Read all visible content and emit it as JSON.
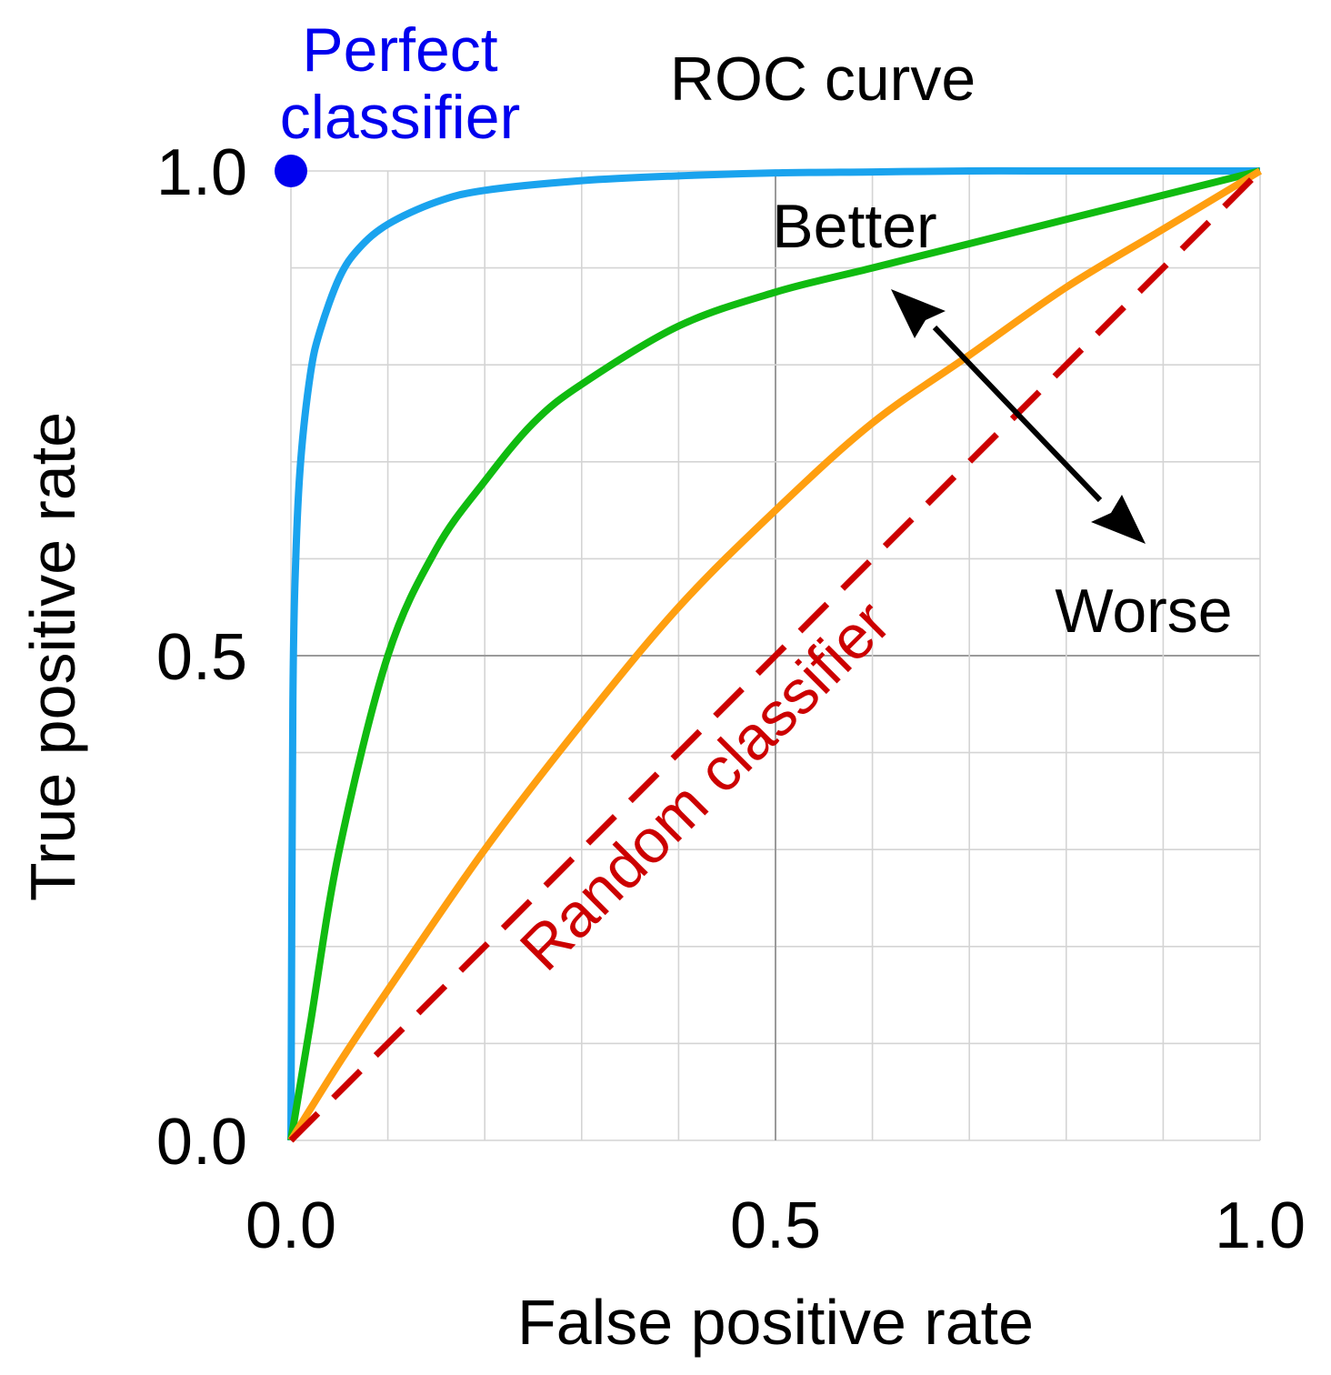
{
  "chart_data": {
    "type": "line",
    "title": "ROC curve",
    "xlabel": "False positive rate",
    "ylabel": "True positive rate",
    "xlim": [
      0,
      1
    ],
    "ylim": [
      0,
      1
    ],
    "grid": true,
    "x_ticks": [
      "0.0",
      "0.5",
      "1.0"
    ],
    "y_ticks": [
      "0.0",
      "0.5",
      "1.0"
    ],
    "perfect_point": {
      "x": 0,
      "y": 1,
      "label_line1": "Perfect",
      "label_line2": "classifier",
      "color": "#0000ee"
    },
    "series": [
      {
        "color": "#1aa3ee",
        "x": [
          0,
          0.002,
          0.005,
          0.01,
          0.02,
          0.03,
          0.05,
          0.07,
          0.1,
          0.15,
          0.2,
          0.3,
          0.4,
          0.5,
          0.6,
          0.7,
          0.8,
          0.9,
          1.0
        ],
        "y": [
          0,
          0.45,
          0.6,
          0.7,
          0.79,
          0.835,
          0.89,
          0.92,
          0.945,
          0.968,
          0.98,
          0.99,
          0.995,
          0.998,
          0.999,
          1.0,
          1.0,
          1.0,
          1.0
        ]
      },
      {
        "color": "#10bb10",
        "x": [
          0,
          0.02,
          0.05,
          0.1,
          0.15,
          0.2,
          0.25,
          0.3,
          0.4,
          0.5,
          0.6,
          0.7,
          0.8,
          0.9,
          1.0
        ],
        "y": [
          0,
          0.12,
          0.3,
          0.5,
          0.61,
          0.68,
          0.74,
          0.78,
          0.84,
          0.875,
          0.9,
          0.925,
          0.95,
          0.975,
          1.0
        ]
      },
      {
        "color": "#ff9f10",
        "x": [
          0,
          0.05,
          0.1,
          0.2,
          0.3,
          0.4,
          0.5,
          0.6,
          0.7,
          0.8,
          0.9,
          1.0
        ],
        "y": [
          0,
          0.08,
          0.155,
          0.3,
          0.43,
          0.55,
          0.65,
          0.74,
          0.81,
          0.88,
          0.94,
          1.0
        ]
      },
      {
        "color": "#cc0000",
        "dashed": true,
        "x": [
          0,
          1
        ],
        "y": [
          0,
          1
        ]
      }
    ],
    "annotations": {
      "better": "Better",
      "worse": "Worse",
      "random": "Random classifier",
      "random_color": "#cc0000"
    }
  }
}
